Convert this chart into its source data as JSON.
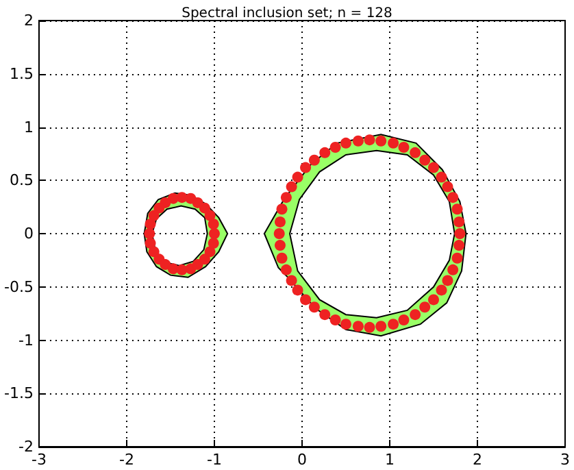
{
  "chart_data": {
    "type": "scatter",
    "title": "Spectral inclusion set; n = 128",
    "xlim": [
      -3,
      3
    ],
    "xticks": [
      -3,
      -2,
      -1,
      0,
      1,
      2,
      3
    ],
    "ylim": [
      -2,
      2
    ],
    "yticks": [
      -2,
      -1.5,
      -1,
      -0.5,
      0,
      0.5,
      1,
      1.5,
      2
    ],
    "grid": true,
    "series": [
      {
        "type": "area",
        "color": "#99ff66",
        "x": [
          -1.8,
          -1.76,
          -1.64,
          -1.45,
          -1.27,
          -1.1,
          -0.95,
          -0.85,
          -0.95,
          -1.1,
          -1.3,
          -1.5,
          -1.66,
          -1.77,
          null,
          -1.71,
          -1.67,
          -1.56,
          -1.4,
          -1.24,
          -1.12,
          -1.08,
          -1.11,
          -1.22,
          -1.38,
          -1.54,
          -1.66
        ],
        "values": [
          0,
          0.19,
          0.32,
          0.38,
          0.36,
          0.28,
          0.15,
          0,
          -0.17,
          -0.31,
          -0.41,
          -0.39,
          -0.31,
          -0.17,
          null,
          0,
          -0.17,
          -0.27,
          -0.3,
          -0.26,
          -0.15,
          0,
          0.15,
          0.23,
          0.26,
          0.23,
          0.14
        ]
      },
      {
        "type": "area",
        "color": "#99ff66",
        "x": [
          -0.43,
          -0.2,
          0.1,
          0.4,
          0.9,
          1.3,
          1.6,
          1.8,
          1.87,
          1.82,
          1.65,
          1.35,
          0.9,
          0.5,
          0.15,
          -0.15,
          -0.27,
          null,
          -0.14,
          -0.05,
          0.2,
          0.5,
          0.85,
          1.2,
          1.5,
          1.68,
          1.74,
          1.68,
          1.5,
          1.2,
          0.85,
          0.5,
          0.2,
          -0.03
        ],
        "values": [
          0,
          0.33,
          0.65,
          0.85,
          0.93,
          0.85,
          0.6,
          0.3,
          0,
          -0.35,
          -0.65,
          -0.85,
          -0.96,
          -0.9,
          -0.7,
          -0.42,
          -0.32,
          null,
          0,
          -0.35,
          -0.62,
          -0.76,
          -0.79,
          -0.72,
          -0.5,
          -0.25,
          0,
          0.3,
          0.55,
          0.74,
          0.78,
          0.74,
          0.58,
          0.32
        ]
      },
      {
        "marker": "circle",
        "color": "#ee2222",
        "x": [
          -1.0,
          -1.01,
          -1.05,
          -1.11,
          -1.19,
          -1.27,
          -1.37,
          -1.47,
          -1.56,
          -1.63,
          -1.69,
          -1.73,
          -1.74,
          -1.73,
          -1.69,
          -1.63,
          -1.56,
          -1.47,
          -1.37,
          -1.27,
          -1.19,
          -1.11,
          -1.05,
          -1.01
        ],
        "values": [
          0,
          0.09,
          0.17,
          0.24,
          0.29,
          0.33,
          0.34,
          0.33,
          0.29,
          0.24,
          0.17,
          0.09,
          0,
          -0.09,
          -0.17,
          -0.24,
          -0.29,
          -0.33,
          -0.34,
          -0.33,
          -0.29,
          -0.24,
          -0.17,
          -0.09
        ]
      },
      {
        "marker": "circle",
        "color": "#ee2222",
        "x": [
          1.8,
          1.79,
          1.77,
          1.72,
          1.66,
          1.59,
          1.5,
          1.4,
          1.29,
          1.16,
          1.04,
          0.9,
          0.77,
          0.64,
          0.5,
          0.38,
          0.26,
          0.14,
          0.04,
          -0.05,
          -0.12,
          -0.18,
          -0.23,
          -0.25,
          -0.26,
          -0.25,
          -0.23,
          -0.18,
          -0.12,
          -0.05,
          0.04,
          0.14,
          0.26,
          0.38,
          0.5,
          0.64,
          0.77,
          0.9,
          1.04,
          1.16,
          1.29,
          1.4,
          1.5,
          1.59,
          1.66,
          1.72,
          1.77,
          1.79
        ],
        "values": [
          0,
          0.11,
          0.23,
          0.34,
          0.44,
          0.53,
          0.62,
          0.69,
          0.76,
          0.81,
          0.85,
          0.87,
          0.88,
          0.87,
          0.85,
          0.81,
          0.76,
          0.69,
          0.62,
          0.53,
          0.44,
          0.34,
          0.23,
          0.11,
          0,
          -0.11,
          -0.23,
          -0.34,
          -0.44,
          -0.53,
          -0.62,
          -0.69,
          -0.76,
          -0.81,
          -0.85,
          -0.87,
          -0.88,
          -0.87,
          -0.85,
          -0.81,
          -0.76,
          -0.69,
          -0.62,
          -0.53,
          -0.44,
          -0.34,
          -0.23,
          -0.11
        ]
      }
    ]
  }
}
